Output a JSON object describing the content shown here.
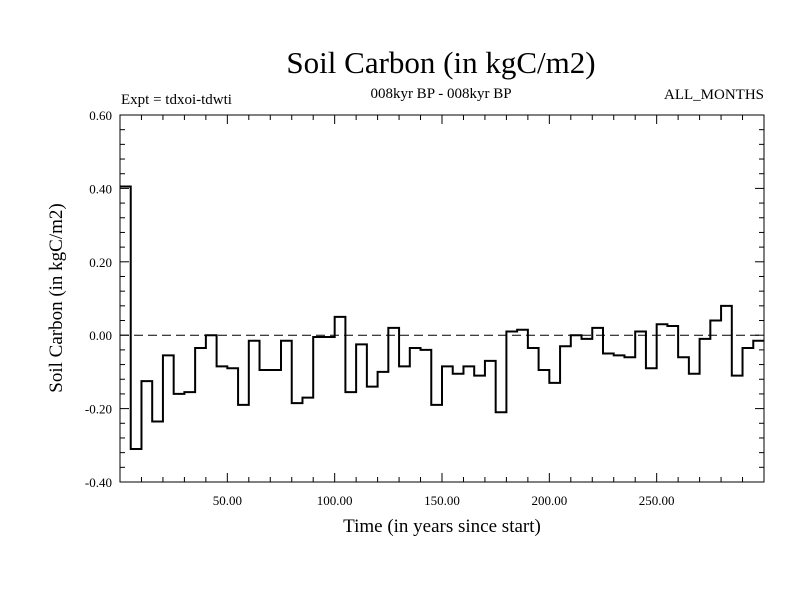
{
  "chart_data": {
    "type": "line",
    "style": "step",
    "title": "Soil Carbon (in kgC/m2)",
    "subtitle": "008kyr BP - 008kyr BP",
    "left_label": "Expt = tdxoi-tdwti",
    "right_label": "ALL_MONTHS",
    "xlabel": "Time (in years since start)",
    "ylabel": "Soil Carbon (in kgC/m2)",
    "xlim": [
      0,
      300
    ],
    "ylim": [
      -0.4,
      0.6
    ],
    "x_tick_values": [
      50,
      100,
      150,
      200,
      250
    ],
    "x_tick_labels": [
      "50.00",
      "100.00",
      "150.00",
      "200.00",
      "250.00"
    ],
    "y_tick_values": [
      -0.4,
      -0.2,
      0.0,
      0.2,
      0.4,
      0.6
    ],
    "y_tick_labels": [
      "-0.40",
      "-0.20",
      "0.00",
      "0.20",
      "0.40",
      "0.60"
    ],
    "reference_line": {
      "y": 0.0,
      "style": "dashed"
    },
    "grid": false,
    "bin_width": 5,
    "series": [
      {
        "x_start": [
          0,
          5,
          10,
          15,
          20,
          25,
          30,
          35,
          40,
          45,
          50,
          55,
          60,
          65,
          70,
          75,
          80,
          85,
          90,
          95,
          100,
          105,
          110,
          115,
          120,
          125,
          130,
          135,
          140,
          145,
          150,
          155,
          160,
          165,
          170,
          175,
          180,
          185,
          190,
          195,
          200,
          205,
          210,
          215,
          220,
          225,
          230,
          235,
          240,
          245,
          250,
          255,
          260,
          265,
          270,
          275,
          280,
          285,
          290,
          295
        ],
        "values": [
          0.405,
          -0.31,
          -0.125,
          -0.235,
          -0.055,
          -0.16,
          -0.155,
          -0.035,
          0.0,
          -0.085,
          -0.09,
          -0.19,
          -0.015,
          -0.095,
          -0.095,
          -0.015,
          -0.185,
          -0.17,
          -0.005,
          -0.005,
          0.05,
          -0.155,
          -0.025,
          -0.14,
          -0.1,
          0.02,
          -0.085,
          -0.035,
          -0.04,
          -0.19,
          -0.085,
          -0.105,
          -0.085,
          -0.11,
          -0.07,
          -0.21,
          0.01,
          0.015,
          -0.035,
          -0.095,
          -0.13,
          -0.03,
          0.0,
          -0.01,
          0.02,
          -0.05,
          -0.055,
          -0.06,
          0.01,
          -0.09,
          0.03,
          0.025,
          -0.06,
          -0.105,
          -0.01,
          0.04,
          0.08,
          -0.11,
          -0.035,
          -0.015
        ]
      }
    ]
  }
}
